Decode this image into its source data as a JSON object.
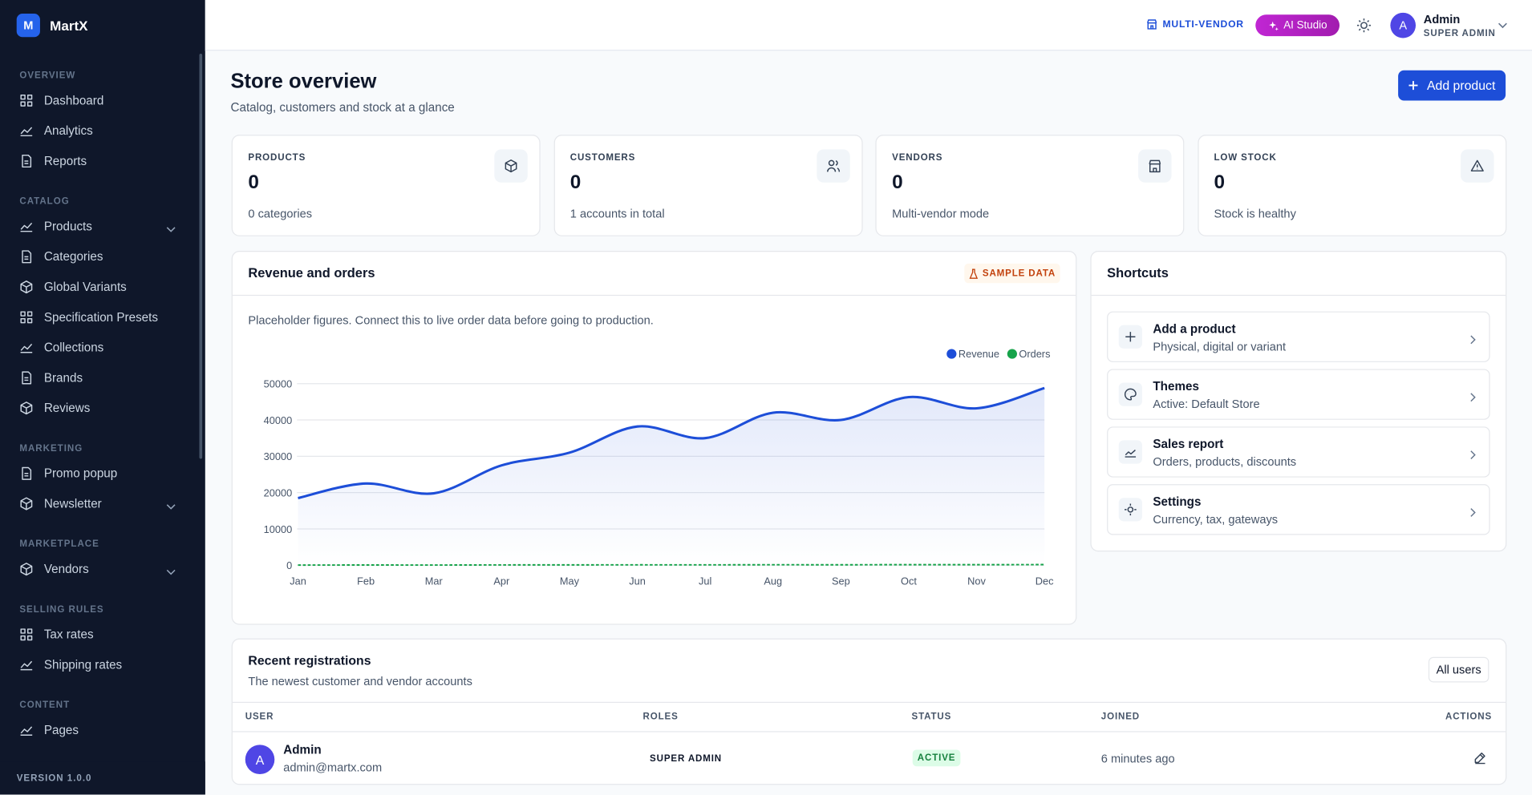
{
  "sidebar": {
    "brand_initial": "M",
    "brand": "MartX",
    "sections": [
      {
        "title": "OVERVIEW",
        "items": [
          {
            "label": "Dashboard"
          },
          {
            "label": "Analytics"
          },
          {
            "label": "Reports"
          }
        ]
      },
      {
        "title": "CATALOG",
        "items": [
          {
            "label": "Products",
            "submenu": true
          },
          {
            "label": "Categories"
          },
          {
            "label": "Global Variants"
          },
          {
            "label": "Specification Presets"
          },
          {
            "label": "Collections"
          },
          {
            "label": "Brands"
          },
          {
            "label": "Reviews"
          }
        ]
      },
      {
        "title": "MARKETING",
        "items": [
          {
            "label": "Promo popup"
          },
          {
            "label": "Newsletter",
            "submenu": true
          }
        ]
      },
      {
        "title": "MARKETPLACE",
        "items": [
          {
            "label": "Vendors",
            "submenu": true
          }
        ]
      },
      {
        "title": "SELLING RULES",
        "items": [
          {
            "label": "Tax rates"
          },
          {
            "label": "Shipping rates"
          }
        ]
      },
      {
        "title": "CONTENT",
        "items": [
          {
            "label": "Pages"
          }
        ]
      }
    ],
    "version": "VERSION 1.0.0"
  },
  "topbar": {
    "mode": "MULTI-VENDOR",
    "ai": "AI Studio",
    "user_initial": "A",
    "user_name": "Admin",
    "user_role": "SUPER ADMIN"
  },
  "header": {
    "title": "Store overview",
    "subtitle": "Catalog, customers and stock at a glance",
    "action": "Add product"
  },
  "stats": [
    {
      "label": "PRODUCTS",
      "value": 0,
      "note": "0 categories"
    },
    {
      "label": "CUSTOMERS",
      "value": 0,
      "note": "1 accounts in total"
    },
    {
      "label": "VENDORS",
      "value": 0,
      "note": "Multi-vendor mode"
    },
    {
      "label": "LOW STOCK",
      "value": 0,
      "note": "Stock is healthy"
    }
  ],
  "chart_data": {
    "type": "line",
    "title": "Revenue and orders",
    "badge": "SAMPLE DATA",
    "note": "Placeholder figures. Connect this to live order data before going to production.",
    "categories": [
      "Jan",
      "Feb",
      "Mar",
      "Apr",
      "May",
      "Jun",
      "Jul",
      "Aug",
      "Sep",
      "Oct",
      "Nov",
      "Dec"
    ],
    "series": [
      {
        "name": "Revenue",
        "color": "#1d4ed8",
        "values": [
          18500,
          22500,
          19800,
          27500,
          31000,
          38200,
          35000,
          42000,
          40000,
          46300,
          43200,
          48800
        ]
      },
      {
        "name": "Orders",
        "color": "#16a34a",
        "values": [
          40,
          60,
          50,
          80,
          90,
          110,
          100,
          130,
          120,
          150,
          140,
          170
        ]
      }
    ],
    "ylim": [
      0,
      50000
    ],
    "yticks": [
      0,
      10000,
      20000,
      30000,
      40000,
      50000
    ],
    "grid": true,
    "legend": "top-right"
  },
  "shortcuts": {
    "title": "Shortcuts",
    "items": [
      {
        "title": "Add a product",
        "subtitle": "Physical, digital or variant"
      },
      {
        "title": "Themes",
        "subtitle": "Active: Default Store"
      },
      {
        "title": "Sales report",
        "subtitle": "Orders, products, discounts"
      },
      {
        "title": "Settings",
        "subtitle": "Currency, tax, gateways"
      }
    ]
  },
  "registrations": {
    "title": "Recent registrations",
    "subtitle": "The newest customer and vendor accounts",
    "action": "All users",
    "columns": [
      "USER",
      "ROLES",
      "STATUS",
      "JOINED",
      "ACTIONS"
    ],
    "rows": [
      {
        "initial": "A",
        "name": "Admin",
        "email": "admin@martx.com",
        "role": "SUPER ADMIN",
        "status": "ACTIVE",
        "joined": "6 minutes ago"
      }
    ]
  }
}
